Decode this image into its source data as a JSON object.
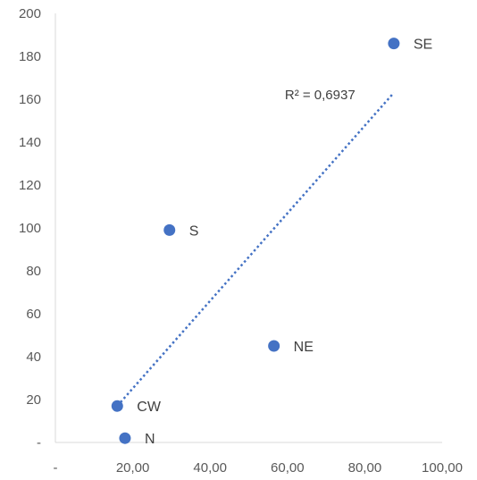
{
  "chart_data": {
    "type": "scatter",
    "title": "",
    "xlabel": "",
    "ylabel": "",
    "xlim": [
      0,
      100
    ],
    "ylim": [
      0,
      200
    ],
    "grid": false,
    "legend": "none",
    "marker_color": "#4472C4",
    "x_ticks": [
      {
        "value": 0,
        "label": "-"
      },
      {
        "value": 20,
        "label": "20,00"
      },
      {
        "value": 40,
        "label": "40,00"
      },
      {
        "value": 60,
        "label": "60,00"
      },
      {
        "value": 80,
        "label": "80,00"
      },
      {
        "value": 100,
        "label": "100,00"
      }
    ],
    "y_ticks": [
      {
        "value": 0,
        "label": "-"
      },
      {
        "value": 20,
        "label": "20"
      },
      {
        "value": 40,
        "label": "40"
      },
      {
        "value": 60,
        "label": "60"
      },
      {
        "value": 80,
        "label": "80"
      },
      {
        "value": 100,
        "label": "100"
      },
      {
        "value": 120,
        "label": "120"
      },
      {
        "value": 140,
        "label": "140"
      },
      {
        "value": 160,
        "label": "160"
      },
      {
        "value": 180,
        "label": "180"
      },
      {
        "value": 200,
        "label": "200"
      }
    ],
    "points": [
      {
        "label": "SE",
        "x": 87.5,
        "y": 186
      },
      {
        "label": "S",
        "x": 29.5,
        "y": 99
      },
      {
        "label": "NE",
        "x": 56.5,
        "y": 45
      },
      {
        "label": "CW",
        "x": 16,
        "y": 17
      },
      {
        "label": "N",
        "x": 18,
        "y": 2
      }
    ],
    "trendline": {
      "type": "linear",
      "style": "dotted",
      "color": "#4472C4",
      "x_start": 16,
      "y_start": 17,
      "x_end": 87.5,
      "y_end": 163,
      "r2_label": "R² = 0,6937"
    }
  }
}
